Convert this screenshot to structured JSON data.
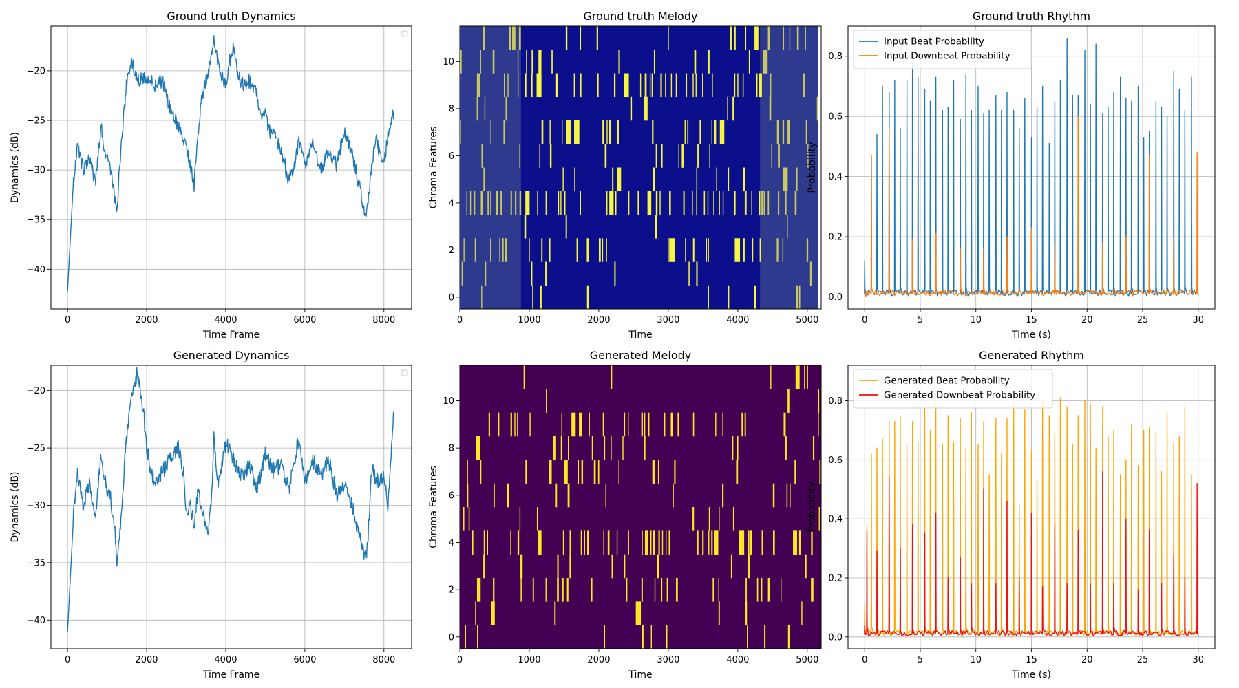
{
  "figure": {
    "background": "#ffffff"
  },
  "chart_data": [
    {
      "id": "gt-dynamics",
      "type": "line",
      "title": "Ground truth Dynamics",
      "xlabel": "Time Frame",
      "ylabel": "Dynamics (dB)",
      "xlim": [
        -420,
        8700
      ],
      "ylim": [
        -44,
        -15.5
      ],
      "xticks": [
        0,
        2000,
        4000,
        6000,
        8000
      ],
      "xtick_labels": [
        "0",
        "2000",
        "4000",
        "6000",
        "8000"
      ],
      "yticks": [
        -40,
        -35,
        -30,
        -25,
        -20
      ],
      "ytick_labels": [
        "−40",
        "−35",
        "−30",
        "−25",
        "−20"
      ],
      "grid": true,
      "legend": "top-right-empty",
      "series": [
        {
          "name": "dynamics",
          "color": "#1f77b4",
          "x": [
            0,
            150,
            250,
            400,
            550,
            700,
            850,
            950,
            1100,
            1200,
            1250,
            1300,
            1400,
            1500,
            1600,
            1800,
            2000,
            2200,
            2400,
            2600,
            2800,
            3000,
            3200,
            3300,
            3400,
            3500,
            3600,
            3700,
            3850,
            4000,
            4100,
            4200,
            4300,
            4450,
            4600,
            4800,
            4900,
            5000,
            5100,
            5300,
            5500,
            5550,
            5700,
            5850,
            6000,
            6200,
            6400,
            6600,
            6800,
            7000,
            7200,
            7400,
            7550,
            7600,
            7700,
            7800,
            8000,
            8100,
            8250
          ],
          "y": [
            -42.2,
            -31.0,
            -27.5,
            -30.0,
            -28.5,
            -31.5,
            -25.5,
            -28.5,
            -30.0,
            -33.0,
            -34.5,
            -30.5,
            -25.5,
            -21.0,
            -19.0,
            -21.0,
            -20.5,
            -21.5,
            -21.0,
            -24.0,
            -25.5,
            -27.5,
            -31.5,
            -26.5,
            -22.5,
            -21.0,
            -19.0,
            -17.0,
            -20.0,
            -21.5,
            -19.0,
            -17.5,
            -20.5,
            -21.5,
            -21.0,
            -22.5,
            -25.0,
            -24.5,
            -26.0,
            -27.0,
            -29.5,
            -31.0,
            -30.5,
            -27.0,
            -29.5,
            -27.5,
            -30.0,
            -28.0,
            -29.5,
            -26.0,
            -28.5,
            -32.0,
            -35.0,
            -33.5,
            -29.0,
            -27.0,
            -29.5,
            -26.5,
            -24.2
          ]
        }
      ]
    },
    {
      "id": "gt-melody",
      "type": "heatmap",
      "title": "Ground truth Melody",
      "xlabel": "Time",
      "ylabel": "Chroma Features",
      "xlim": [
        0,
        5200
      ],
      "ylim": [
        -0.5,
        11.5
      ],
      "xticks": [
        0,
        1000,
        2000,
        3000,
        4000,
        5000
      ],
      "xtick_labels": [
        "0",
        "1000",
        "2000",
        "3000",
        "4000",
        "5000"
      ],
      "yticks": [
        0,
        2,
        4,
        6,
        8,
        10
      ],
      "ytick_labels": [
        "0",
        "2",
        "4",
        "6",
        "8",
        "10"
      ],
      "colors": {
        "background": "#0b0f8c",
        "faded_background": "#2e3a8e",
        "active": "#f5f542",
        "faded_active": "#c8c860",
        "blank": "#ffffff"
      },
      "faded_ranges": [
        [
          0,
          880
        ],
        [
          4320,
          5150
        ]
      ],
      "data_end": 5150,
      "row_density": [
        0.1,
        0.05,
        0.2,
        0.04,
        0.35,
        0.05,
        0.08,
        0.15,
        0.06,
        0.2,
        0.05,
        0.08
      ]
    },
    {
      "id": "gt-rhythm",
      "type": "line",
      "title": "Ground truth Rhythm",
      "xlabel": "Time (s)",
      "ylabel": "Probability",
      "xlim": [
        -1.5,
        31.5
      ],
      "ylim": [
        -0.04,
        0.9
      ],
      "xticks": [
        0,
        5,
        10,
        15,
        20,
        25,
        30
      ],
      "xtick_labels": [
        "0",
        "5",
        "10",
        "15",
        "20",
        "25",
        "30"
      ],
      "yticks": [
        0.0,
        0.2,
        0.4,
        0.6,
        0.8
      ],
      "ytick_labels": [
        "0.0",
        "0.2",
        "0.4",
        "0.6",
        "0.8"
      ],
      "grid": true,
      "legend": "top-left",
      "series": [
        {
          "name": "Input Beat Probability",
          "color": "#1f77b4",
          "x": [
            0.0,
            0.6,
            1.1,
            1.6,
            2.2,
            2.7,
            3.2,
            3.8,
            4.3,
            4.8,
            5.4,
            5.9,
            6.4,
            7.0,
            7.5,
            8.0,
            8.6,
            9.1,
            9.6,
            10.2,
            10.7,
            11.2,
            11.8,
            12.3,
            12.8,
            13.4,
            13.9,
            14.4,
            15.0,
            15.5,
            16.0,
            16.6,
            17.1,
            17.6,
            18.2,
            18.7,
            19.2,
            19.8,
            20.3,
            20.8,
            21.4,
            21.9,
            22.4,
            23.0,
            23.5,
            24.0,
            24.6,
            25.1,
            25.6,
            26.2,
            26.7,
            27.2,
            27.8,
            28.3,
            28.8,
            29.4,
            29.9
          ],
          "peaks": [
            0.12,
            0.47,
            0.54,
            0.7,
            0.68,
            0.72,
            0.56,
            0.72,
            0.78,
            0.73,
            0.69,
            0.65,
            0.73,
            0.62,
            0.63,
            0.72,
            0.59,
            0.74,
            0.62,
            0.7,
            0.61,
            0.62,
            0.67,
            0.62,
            0.68,
            0.62,
            0.56,
            0.66,
            0.53,
            0.63,
            0.7,
            0.51,
            0.65,
            0.72,
            0.86,
            0.67,
            0.67,
            0.82,
            0.64,
            0.84,
            0.61,
            0.63,
            0.68,
            0.73,
            0.66,
            0.65,
            0.7,
            0.53,
            0.55,
            0.65,
            0.63,
            0.6,
            0.75,
            0.69,
            0.62,
            0.73,
            0.04
          ]
        },
        {
          "name": "Input Downbeat Probability",
          "color": "#ff7f0e",
          "x": [
            0.1,
            0.6,
            2.2,
            4.3,
            6.4,
            8.6,
            10.7,
            12.8,
            15.0,
            17.1,
            19.2,
            21.4,
            23.5,
            25.6,
            27.8,
            29.9
          ],
          "peaks": [
            0.0,
            0.47,
            0.56,
            0.19,
            0.21,
            0.16,
            0.16,
            0.2,
            0.23,
            0.18,
            0.6,
            0.18,
            0.2,
            0.47,
            0.2,
            0.48
          ]
        }
      ]
    },
    {
      "id": "gen-dynamics",
      "type": "line",
      "title": "Generated Dynamics",
      "xlabel": "Time Frame",
      "ylabel": "Dynamics (dB)",
      "xlim": [
        -420,
        8700
      ],
      "ylim": [
        -42.5,
        -17.8
      ],
      "xticks": [
        0,
        2000,
        4000,
        6000,
        8000
      ],
      "xtick_labels": [
        "0",
        "2000",
        "4000",
        "6000",
        "8000"
      ],
      "yticks": [
        -40,
        -35,
        -30,
        -25,
        -20
      ],
      "ytick_labels": [
        "−40",
        "−35",
        "−30",
        "−25",
        "−20"
      ],
      "grid": true,
      "legend": "top-right-empty",
      "series": [
        {
          "name": "dynamics",
          "color": "#1f77b4",
          "x": [
            0,
            150,
            250,
            400,
            550,
            700,
            850,
            950,
            1100,
            1200,
            1250,
            1350,
            1450,
            1550,
            1650,
            1750,
            1850,
            1950,
            2000,
            2100,
            2200,
            2400,
            2600,
            2800,
            2950,
            3000,
            3100,
            3200,
            3300,
            3400,
            3550,
            3650,
            3700,
            3800,
            3900,
            4000,
            4200,
            4400,
            4600,
            4800,
            5000,
            5200,
            5400,
            5600,
            5800,
            5850,
            6000,
            6200,
            6400,
            6600,
            6800,
            7000,
            7200,
            7400,
            7550,
            7600,
            7700,
            7800,
            8000,
            8100,
            8250
          ],
          "y": [
            -41.0,
            -31.0,
            -27.0,
            -30.0,
            -28.0,
            -31.0,
            -25.5,
            -28.0,
            -29.5,
            -32.5,
            -35.0,
            -31.5,
            -26.0,
            -22.0,
            -20.0,
            -18.6,
            -20.0,
            -23.0,
            -25.0,
            -27.0,
            -28.0,
            -27.0,
            -26.0,
            -25.0,
            -27.5,
            -30.5,
            -30.0,
            -31.5,
            -29.0,
            -30.5,
            -32.5,
            -29.0,
            -24.0,
            -28.0,
            -26.5,
            -24.5,
            -26.0,
            -27.5,
            -26.5,
            -28.5,
            -25.5,
            -27.0,
            -26.5,
            -28.5,
            -25.0,
            -24.0,
            -28.0,
            -26.0,
            -27.5,
            -26.0,
            -29.0,
            -28.0,
            -30.0,
            -33.0,
            -34.8,
            -32.5,
            -26.5,
            -28.0,
            -27.5,
            -30.0,
            -21.8
          ]
        }
      ]
    },
    {
      "id": "gen-melody",
      "type": "heatmap",
      "title": "Generated Melody",
      "xlabel": "Time",
      "ylabel": "Chroma Features",
      "xlim": [
        0,
        5200
      ],
      "ylim": [
        -0.5,
        11.5
      ],
      "xticks": [
        0,
        1000,
        2000,
        3000,
        4000,
        5000
      ],
      "xtick_labels": [
        "0",
        "1000",
        "2000",
        "3000",
        "4000",
        "5000"
      ],
      "yticks": [
        0,
        2,
        4,
        6,
        8,
        10
      ],
      "ytick_labels": [
        "0",
        "2",
        "4",
        "6",
        "8",
        "10"
      ],
      "colors": {
        "background": "#440154",
        "active": "#fde725"
      },
      "faded_ranges": [],
      "data_end": 5200,
      "row_density": [
        0.08,
        0.05,
        0.15,
        0.04,
        0.3,
        0.05,
        0.07,
        0.12,
        0.06,
        0.18,
        0.05,
        0.07
      ]
    },
    {
      "id": "gen-rhythm",
      "type": "line",
      "title": "Generated Rhythm",
      "xlabel": "Time (s)",
      "ylabel": "Probability",
      "xlim": [
        -1.5,
        31.5
      ],
      "ylim": [
        -0.04,
        0.92
      ],
      "xticks": [
        0,
        5,
        10,
        15,
        20,
        25,
        30
      ],
      "xtick_labels": [
        "0",
        "5",
        "10",
        "15",
        "20",
        "25",
        "30"
      ],
      "yticks": [
        0.0,
        0.2,
        0.4,
        0.6,
        0.8
      ],
      "ytick_labels": [
        "0.0",
        "0.2",
        "0.4",
        "0.6",
        "0.8"
      ],
      "grid": true,
      "legend": "top-left",
      "series": [
        {
          "name": "Generated Beat Probability",
          "color": "#ffa500",
          "x": [
            0.0,
            0.2,
            0.6,
            1.1,
            1.6,
            2.2,
            2.7,
            3.2,
            3.8,
            4.3,
            4.8,
            5.4,
            5.9,
            6.4,
            7.0,
            7.5,
            8.0,
            8.6,
            9.1,
            9.6,
            10.2,
            10.7,
            11.2,
            11.8,
            12.3,
            12.8,
            13.4,
            13.9,
            14.4,
            15.0,
            15.5,
            16.0,
            16.6,
            17.1,
            17.6,
            18.2,
            18.7,
            19.2,
            19.8,
            20.3,
            20.8,
            21.4,
            21.9,
            22.4,
            23.0,
            23.5,
            24.0,
            24.6,
            25.1,
            25.6,
            26.2,
            26.7,
            27.2,
            27.8,
            28.3,
            28.8,
            29.4,
            29.9
          ],
          "peaks": [
            0.11,
            0.38,
            0.62,
            0.64,
            0.67,
            0.73,
            0.73,
            0.75,
            0.65,
            0.73,
            0.66,
            0.78,
            0.7,
            0.79,
            0.65,
            0.75,
            0.66,
            0.74,
            0.64,
            0.76,
            0.65,
            0.73,
            0.55,
            0.74,
            0.62,
            0.74,
            0.82,
            0.45,
            0.77,
            0.63,
            0.53,
            0.8,
            0.75,
            0.69,
            0.81,
            0.78,
            0.65,
            0.75,
            0.8,
            0.79,
            0.64,
            0.78,
            0.68,
            0.7,
            0.55,
            0.6,
            0.72,
            0.58,
            0.7,
            0.71,
            0.69,
            0.56,
            0.76,
            0.66,
            0.68,
            0.78,
            0.55,
            0.05
          ]
        },
        {
          "name": "Generated Downbeat Probability",
          "color": "#ee1111",
          "x": [
            0.0,
            0.2,
            1.1,
            2.2,
            3.2,
            4.3,
            5.4,
            6.4,
            7.5,
            8.6,
            9.6,
            10.7,
            11.8,
            12.8,
            13.9,
            15.0,
            16.0,
            17.1,
            18.2,
            19.2,
            20.3,
            21.4,
            22.4,
            23.5,
            24.6,
            25.6,
            26.7,
            27.8,
            28.8,
            29.9
          ],
          "peaks": [
            0.04,
            0.36,
            0.29,
            0.54,
            0.3,
            0.38,
            0.35,
            0.42,
            0.2,
            0.27,
            0.18,
            0.5,
            0.18,
            0.46,
            0.2,
            0.42,
            0.17,
            0.38,
            0.18,
            0.36,
            0.18,
            0.56,
            0.18,
            0.4,
            0.16,
            0.36,
            0.18,
            0.28,
            0.2,
            0.52
          ]
        }
      ]
    }
  ]
}
